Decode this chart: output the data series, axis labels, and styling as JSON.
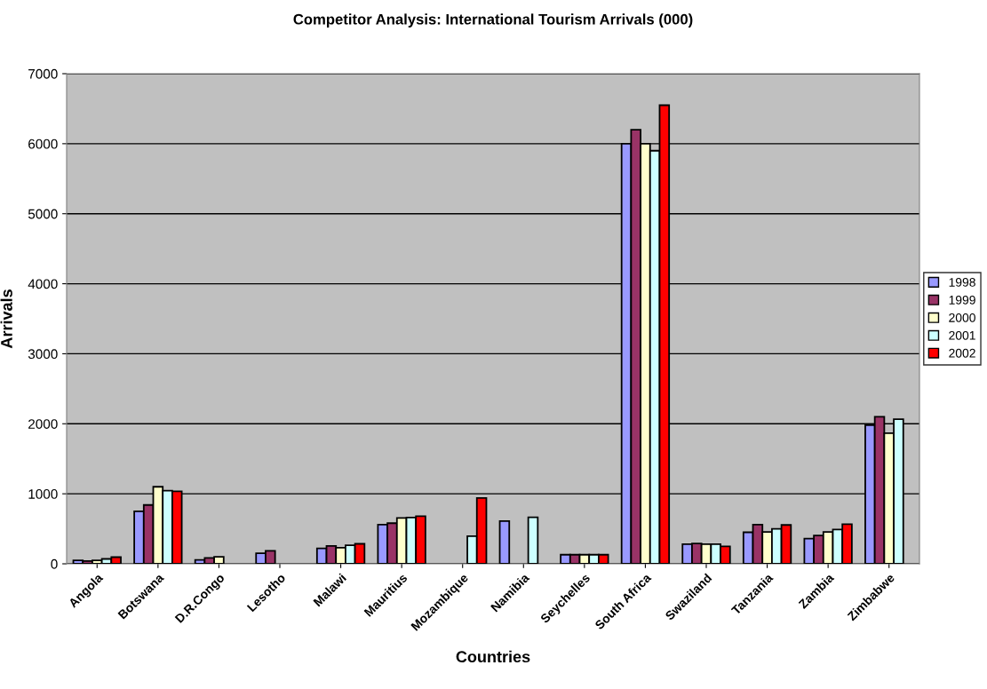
{
  "chart_data": {
    "type": "bar",
    "title": "Competitor Analysis: International Tourism Arrivals (000)",
    "xlabel": "Countries",
    "ylabel": "Arrivals",
    "categories": [
      "Angola",
      "Botswana",
      "D.R.Congo",
      "Lesotho",
      "Malawi",
      "Mauritius",
      "Mozambique",
      "Namibia",
      "Seychelles",
      "South Africa",
      "Swaziland",
      "Tanzania",
      "Zambia",
      "Zimbabwe"
    ],
    "series": [
      {
        "name": "1998",
        "color": "#9999ff",
        "values": [
          50,
          750,
          55,
          150,
          220,
          560,
          null,
          610,
          130,
          6000,
          280,
          450,
          360,
          1980
        ]
      },
      {
        "name": "1999",
        "color": "#993366",
        "values": [
          40,
          840,
          85,
          185,
          255,
          580,
          null,
          null,
          130,
          6200,
          290,
          560,
          405,
          2100
        ]
      },
      {
        "name": "2000",
        "color": "#ffffcc",
        "values": [
          50,
          1100,
          100,
          null,
          230,
          655,
          null,
          null,
          130,
          6000,
          280,
          455,
          455,
          1865
        ]
      },
      {
        "name": "2001",
        "color": "#ccffff",
        "values": [
          70,
          1045,
          null,
          null,
          265,
          660,
          395,
          665,
          130,
          5900,
          280,
          500,
          490,
          2065
        ]
      },
      {
        "name": "2002",
        "color": "#ff0000",
        "values": [
          95,
          1035,
          null,
          null,
          285,
          680,
          940,
          null,
          130,
          6550,
          250,
          555,
          565,
          null
        ]
      }
    ],
    "ylim": [
      0,
      7000
    ],
    "yticks": [
      0,
      1000,
      2000,
      3000,
      4000,
      5000,
      6000,
      7000
    ],
    "grid": "y",
    "legend": "right"
  }
}
